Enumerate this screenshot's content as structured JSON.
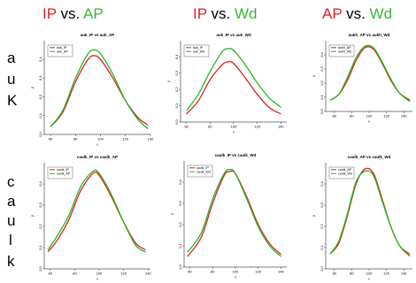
{
  "headers": [
    {
      "a": "IP",
      "vs": " vs. ",
      "b": "AP",
      "a_color": "#dd2222",
      "b_color": "#33bb33"
    },
    {
      "a": "IP",
      "vs": " vs. ",
      "b": "Wd",
      "a_color": "#dd2222",
      "b_color": "#33bb33"
    },
    {
      "a": "AP",
      "vs": " vs. ",
      "b": "Wd",
      "a_color": "#dd2222",
      "b_color": "#33bb33"
    }
  ],
  "row_labels": {
    "top": [
      "a",
      "u",
      "K"
    ],
    "bottom": [
      "c",
      "a",
      "u",
      "l",
      "k"
    ]
  },
  "colors": {
    "red": "#e02020",
    "green": "#22bb22"
  },
  "chart_data": [
    {
      "type": "line",
      "title": "auk_IP vs auk_AP",
      "xlabel": "x",
      "ylabel": "y",
      "xlim": [
        55,
        140
      ],
      "ylim": [
        0.0,
        0.5
      ],
      "xticks": [
        60,
        80,
        100,
        120,
        140
      ],
      "yticks": [
        "0.0",
        "0.1",
        "0.2",
        "0.3",
        "0.4"
      ],
      "legend_loc": "top-left",
      "series": [
        {
          "name": "auk_IP",
          "color": "red",
          "x": [
            60,
            70,
            80,
            90,
            95,
            100,
            110,
            120,
            130,
            138
          ],
          "y": [
            0.04,
            0.12,
            0.28,
            0.4,
            0.42,
            0.4,
            0.3,
            0.18,
            0.09,
            0.05
          ]
        },
        {
          "name": "auk_AP",
          "color": "green",
          "x": [
            60,
            70,
            80,
            90,
            95,
            100,
            110,
            120,
            130,
            138
          ],
          "y": [
            0.04,
            0.13,
            0.3,
            0.43,
            0.45,
            0.43,
            0.32,
            0.18,
            0.08,
            0.03
          ]
        }
      ]
    },
    {
      "type": "line",
      "title": "auk_IP vs auk_Wd",
      "xlabel": "x",
      "ylabel": "y",
      "xlim": [
        55,
        145
      ],
      "ylim": [
        0.0,
        0.5
      ],
      "xticks": [
        60,
        80,
        100,
        120,
        140
      ],
      "yticks": [
        "0.0",
        "0.1",
        "0.2",
        "0.3",
        "0.4"
      ],
      "legend_loc": "top-left",
      "series": [
        {
          "name": "auk_IP",
          "color": "red",
          "x": [
            60,
            70,
            80,
            90,
            95,
            100,
            110,
            120,
            130,
            140
          ],
          "y": [
            0.05,
            0.13,
            0.26,
            0.35,
            0.37,
            0.36,
            0.27,
            0.17,
            0.09,
            0.05
          ]
        },
        {
          "name": "auk_Wd",
          "color": "green",
          "x": [
            60,
            70,
            80,
            90,
            95,
            100,
            110,
            120,
            130,
            140
          ],
          "y": [
            0.07,
            0.17,
            0.31,
            0.43,
            0.45,
            0.44,
            0.35,
            0.24,
            0.15,
            0.09
          ]
        }
      ]
    },
    {
      "type": "line",
      "title": "aukh_AP vs aukh_Wd",
      "xlabel": "x",
      "ylabel": "y",
      "xlim": [
        50,
        150
      ],
      "ylim": [
        0.0,
        0.5
      ],
      "xticks": [
        60,
        80,
        100,
        120,
        140
      ],
      "yticks": [
        "0.0",
        "0.1",
        "0.2",
        "0.3",
        "0.4"
      ],
      "legend_loc": "top-left",
      "series": [
        {
          "name": "aukh_AP",
          "color": "red",
          "x": [
            55,
            65,
            75,
            85,
            95,
            105,
            115,
            125,
            135,
            147
          ],
          "y": [
            0.08,
            0.12,
            0.22,
            0.36,
            0.45,
            0.44,
            0.34,
            0.22,
            0.13,
            0.08
          ]
        },
        {
          "name": "aukh_Wd",
          "color": "green",
          "x": [
            55,
            65,
            75,
            85,
            95,
            105,
            115,
            125,
            135,
            147
          ],
          "y": [
            0.08,
            0.12,
            0.24,
            0.38,
            0.46,
            0.45,
            0.35,
            0.23,
            0.13,
            0.07
          ]
        }
      ]
    },
    {
      "type": "line",
      "title": "caulk_IP vs caulk_AP",
      "xlabel": "x",
      "ylabel": "y",
      "xlim": [
        55,
        142
      ],
      "ylim": [
        0.0,
        0.5
      ],
      "xticks": [
        60,
        80,
        100,
        120,
        140
      ],
      "yticks": [
        "0.0",
        "0.1",
        "0.2",
        "0.3",
        "0.4"
      ],
      "legend_loc": "top-left",
      "series": [
        {
          "name": "caulk_IP",
          "color": "red",
          "x": [
            58,
            65,
            75,
            85,
            95,
            100,
            110,
            120,
            130,
            138
          ],
          "y": [
            0.08,
            0.13,
            0.23,
            0.37,
            0.45,
            0.44,
            0.34,
            0.22,
            0.12,
            0.09
          ]
        },
        {
          "name": "caulk_AP",
          "color": "green",
          "x": [
            58,
            65,
            75,
            85,
            95,
            100,
            110,
            120,
            130,
            138
          ],
          "y": [
            0.09,
            0.15,
            0.25,
            0.39,
            0.46,
            0.45,
            0.35,
            0.22,
            0.11,
            0.08
          ]
        }
      ]
    },
    {
      "type": "line",
      "title": "caulk_IP vs caulk_Wd",
      "xlabel": "x",
      "ylabel": "y",
      "xlim": [
        55,
        145
      ],
      "ylim": [
        0.0,
        0.5
      ],
      "xticks": [
        60,
        80,
        100,
        120,
        140
      ],
      "yticks": [
        "0.0",
        "0.1",
        "0.2",
        "0.3",
        "0.4"
      ],
      "legend_loc": "top-left",
      "series": [
        {
          "name": "caulk_IP",
          "color": "red",
          "x": [
            58,
            70,
            80,
            90,
            95,
            100,
            110,
            120,
            130,
            140
          ],
          "y": [
            0.05,
            0.14,
            0.3,
            0.43,
            0.45,
            0.44,
            0.33,
            0.2,
            0.11,
            0.06
          ]
        },
        {
          "name": "caulk_Wd",
          "color": "green",
          "x": [
            58,
            70,
            80,
            90,
            95,
            100,
            110,
            120,
            130,
            140
          ],
          "y": [
            0.07,
            0.16,
            0.32,
            0.44,
            0.46,
            0.44,
            0.32,
            0.19,
            0.1,
            0.05
          ]
        }
      ]
    },
    {
      "type": "line",
      "title": "caulk_AP vs caulk_Wd",
      "xlabel": "x",
      "ylabel": "y",
      "xlim": [
        50,
        150
      ],
      "ylim": [
        0.0,
        0.5
      ],
      "xticks": [
        60,
        80,
        100,
        120,
        140
      ],
      "yticks": [
        "0.0",
        "0.1",
        "0.2",
        "0.3",
        "0.4"
      ],
      "legend_loc": "top-left",
      "series": [
        {
          "name": "caulk_AP",
          "color": "red",
          "x": [
            55,
            65,
            75,
            85,
            95,
            105,
            115,
            125,
            135,
            147
          ],
          "y": [
            0.07,
            0.12,
            0.25,
            0.4,
            0.47,
            0.45,
            0.33,
            0.2,
            0.11,
            0.06
          ]
        },
        {
          "name": "caulk_Wd",
          "color": "green",
          "x": [
            55,
            65,
            75,
            85,
            95,
            105,
            115,
            125,
            135,
            147
          ],
          "y": [
            0.07,
            0.13,
            0.26,
            0.41,
            0.46,
            0.44,
            0.32,
            0.2,
            0.11,
            0.07
          ]
        }
      ]
    }
  ]
}
